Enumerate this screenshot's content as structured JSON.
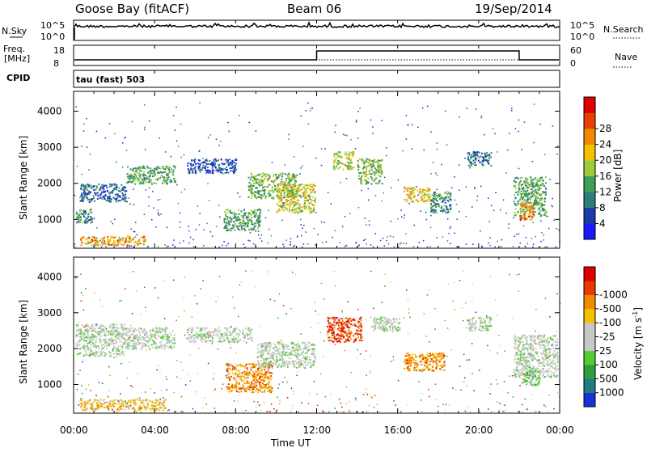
{
  "header": {
    "station": "Goose Bay (fitACF)",
    "beam": "Beam 06",
    "date": "19/Sep/2014"
  },
  "top_panels": {
    "nsky": {
      "label": "N.Sky",
      "yticks": [
        "10^5",
        "10^0"
      ],
      "right_label": "N.Search",
      "right_yticks": [
        "10^5",
        "10^0"
      ]
    },
    "freq": {
      "label_line1": "Freq.",
      "label_line2": "[MHz]",
      "yticks": [
        "18",
        "8"
      ],
      "right_label": "Nave",
      "right_yticks": [
        "60",
        "0"
      ]
    },
    "cpid": {
      "label": "CPID",
      "text": "tau (fast) 503"
    }
  },
  "chart_data": [
    {
      "type": "heatmap",
      "panel": "power",
      "ylabel": "Slant Range [km]",
      "ylim": [
        200,
        4550
      ],
      "yticks": [
        1000,
        2000,
        3000,
        4000
      ],
      "xlim": [
        0,
        24
      ],
      "colorbar": {
        "label": "Power [dB]",
        "ticks": [
          "4",
          "8",
          "12",
          "16",
          "20",
          "24",
          "28"
        ],
        "colors": [
          "#1a1aff",
          "#1c3aa8",
          "#2e7d7d",
          "#3d9e56",
          "#9ccc3a",
          "#f2c200",
          "#f28a00",
          "#e84000",
          "#e00000"
        ]
      },
      "regions": [
        {
          "t": [
            0.1,
            0.9
          ],
          "r": [
            900,
            1300
          ],
          "level": 12
        },
        {
          "t": [
            0.3,
            2.6
          ],
          "r": [
            1500,
            2000
          ],
          "level": 8
        },
        {
          "t": [
            2.6,
            5.0
          ],
          "r": [
            2000,
            2500
          ],
          "level": 14
        },
        {
          "t": [
            5.6,
            8.0
          ],
          "r": [
            2300,
            2700
          ],
          "level": 6
        },
        {
          "t": [
            7.4,
            9.2
          ],
          "r": [
            700,
            1300
          ],
          "level": 14
        },
        {
          "t": [
            8.6,
            11.0
          ],
          "r": [
            1600,
            2300
          ],
          "level": 16
        },
        {
          "t": [
            10.0,
            11.9
          ],
          "r": [
            1200,
            2000
          ],
          "level": 20
        },
        {
          "t": [
            12.8,
            13.8
          ],
          "r": [
            2400,
            2900
          ],
          "level": 18
        },
        {
          "t": [
            14.0,
            15.2
          ],
          "r": [
            2000,
            2700
          ],
          "level": 16
        },
        {
          "t": [
            16.3,
            17.6
          ],
          "r": [
            1500,
            1900
          ],
          "level": 22
        },
        {
          "t": [
            17.6,
            18.6
          ],
          "r": [
            1200,
            1800
          ],
          "level": 12
        },
        {
          "t": [
            19.4,
            20.6
          ],
          "r": [
            2500,
            2900
          ],
          "level": 10
        },
        {
          "t": [
            21.7,
            23.3
          ],
          "r": [
            1100,
            2200
          ],
          "level": 14
        },
        {
          "t": [
            22.0,
            22.7
          ],
          "r": [
            1000,
            1500
          ],
          "level": 26
        },
        {
          "t": [
            0.3,
            3.5
          ],
          "r": [
            300,
            550
          ],
          "level": 24
        }
      ]
    },
    {
      "type": "heatmap",
      "panel": "velocity",
      "ylabel": "Slant Range [km]",
      "ylim": [
        200,
        4550
      ],
      "yticks": [
        1000,
        2000,
        3000,
        4000
      ],
      "xlim": [
        0,
        24
      ],
      "xticks": [
        "00:00",
        "04:00",
        "08:00",
        "12:00",
        "16:00",
        "20:00",
        "00:00"
      ],
      "xlabel": "Time UT",
      "colorbar": {
        "label": "Velocity [m s",
        "label_sup": "-1",
        "ticks": [
          "1000",
          "500",
          "100",
          "25",
          "-25",
          "-100",
          "-500",
          "-1000"
        ],
        "colors": [
          "#1a2fd6",
          "#227a82",
          "#2e9e3e",
          "#55cc33",
          "#c8c8c8",
          "#c8c8c8",
          "#f2c200",
          "#f28a00",
          "#e83a00",
          "#e00000"
        ]
      },
      "regions": [
        {
          "t": [
            0.1,
            2.5
          ],
          "r": [
            1800,
            2700
          ],
          "color_index": 4
        },
        {
          "t": [
            2.5,
            5.0
          ],
          "r": [
            2000,
            2600
          ],
          "color_index": 4
        },
        {
          "t": [
            5.6,
            8.8
          ],
          "r": [
            2200,
            2600
          ],
          "color_index": 4
        },
        {
          "t": [
            7.5,
            9.8
          ],
          "r": [
            800,
            1600
          ],
          "color_index": 7
        },
        {
          "t": [
            9.0,
            11.9
          ],
          "r": [
            1500,
            2200
          ],
          "color_index": 4
        },
        {
          "t": [
            12.5,
            14.2
          ],
          "r": [
            2200,
            2900
          ],
          "color_index": 8
        },
        {
          "t": [
            14.6,
            16.1
          ],
          "r": [
            2500,
            2900
          ],
          "color_index": 4
        },
        {
          "t": [
            16.3,
            18.3
          ],
          "r": [
            1400,
            1900
          ],
          "color_index": 7
        },
        {
          "t": [
            19.4,
            20.6
          ],
          "r": [
            2500,
            2900
          ],
          "color_index": 4
        },
        {
          "t": [
            21.7,
            23.9
          ],
          "r": [
            1200,
            2400
          ],
          "color_index": 4
        },
        {
          "t": [
            22.1,
            23.0
          ],
          "r": [
            1000,
            1400
          ],
          "color_index": 3
        },
        {
          "t": [
            0.3,
            4.5
          ],
          "r": [
            300,
            600
          ],
          "color_index": 6
        }
      ]
    }
  ]
}
